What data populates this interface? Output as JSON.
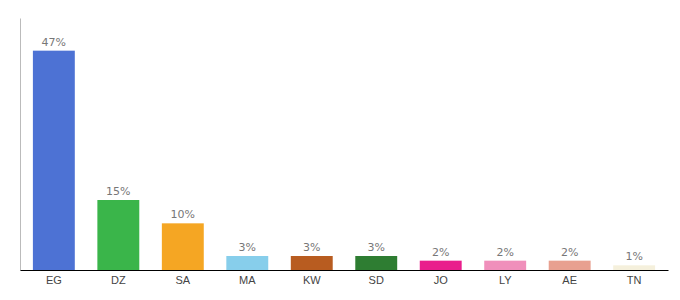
{
  "chart_data": {
    "type": "bar",
    "categories": [
      "EG",
      "DZ",
      "SA",
      "MA",
      "KW",
      "SD",
      "JO",
      "LY",
      "AE",
      "TN"
    ],
    "values": [
      47,
      15,
      10,
      3,
      3,
      3,
      2,
      2,
      2,
      1
    ],
    "value_labels": [
      "47%",
      "15%",
      "10%",
      "3%",
      "3%",
      "3%",
      "2%",
      "2%",
      "2%",
      "1%"
    ],
    "colors": [
      "#4d72d4",
      "#3ab54a",
      "#f5a623",
      "#87ceeb",
      "#b85c20",
      "#2e7d32",
      "#e91e8c",
      "#f08fbb",
      "#e8a090",
      "#f5f0dc"
    ],
    "ylim": [
      0,
      54
    ],
    "data_labels": true,
    "tick_labels": "x"
  }
}
